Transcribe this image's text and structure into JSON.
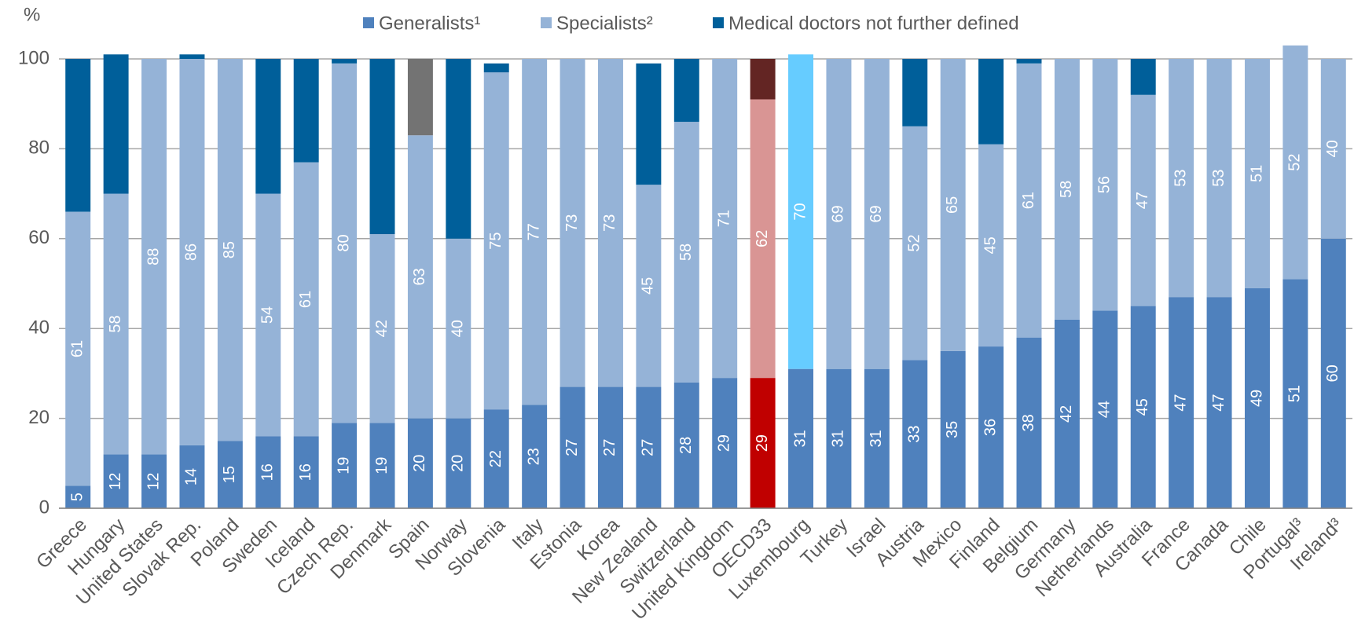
{
  "chart_data": {
    "type": "stacked_bar",
    "y_unit_label": "%",
    "categories": [
      "Greece",
      "Hungary",
      "United States",
      "Slovak Rep.",
      "Poland",
      "Sweden",
      "Iceland",
      "Czech Rep.",
      "Denmark",
      "Spain",
      "Norway",
      "Slovenia",
      "Italy",
      "Estonia",
      "Korea",
      "New Zealand",
      "Switzerland",
      "United Kingdom",
      "OECD33",
      "Luxembourg",
      "Turkey",
      "Israel",
      "Austria",
      "Mexico",
      "Finland",
      "Belgium",
      "Germany",
      "Netherlands",
      "Australia",
      "France",
      "Canada",
      "Chile",
      "Portugal³",
      "Ireland³"
    ],
    "series": [
      {
        "name": "Generalists¹",
        "color": "#4f81bd",
        "show_labels": true,
        "colors": [
          "#4f81bd",
          "#4f81bd",
          "#4f81bd",
          "#4f81bd",
          "#4f81bd",
          "#4f81bd",
          "#4f81bd",
          "#4f81bd",
          "#4f81bd",
          "#4f81bd",
          "#4f81bd",
          "#4f81bd",
          "#4f81bd",
          "#4f81bd",
          "#4f81bd",
          "#4f81bd",
          "#4f81bd",
          "#4f81bd",
          "#c00000",
          "#4f81bd",
          "#4f81bd",
          "#4f81bd",
          "#4f81bd",
          "#4f81bd",
          "#4f81bd",
          "#4f81bd",
          "#4f81bd",
          "#4f81bd",
          "#4f81bd",
          "#4f81bd",
          "#4f81bd",
          "#4f81bd",
          "#4f81bd",
          "#4f81bd"
        ],
        "values": [
          5,
          12,
          12,
          14,
          15,
          16,
          16,
          19,
          19,
          20,
          20,
          22,
          23,
          27,
          27,
          27,
          28,
          29,
          29,
          31,
          31,
          31,
          33,
          35,
          36,
          38,
          42,
          44,
          45,
          47,
          47,
          49,
          51,
          60
        ]
      },
      {
        "name": "Specialists²",
        "color": "#95b3d7",
        "show_labels": true,
        "colors": [
          "#95b3d7",
          "#95b3d7",
          "#95b3d7",
          "#95b3d7",
          "#95b3d7",
          "#95b3d7",
          "#95b3d7",
          "#95b3d7",
          "#95b3d7",
          "#95b3d7",
          "#95b3d7",
          "#95b3d7",
          "#95b3d7",
          "#95b3d7",
          "#95b3d7",
          "#95b3d7",
          "#95b3d7",
          "#95b3d7",
          "#d99594",
          "#66ccff",
          "#95b3d7",
          "#95b3d7",
          "#95b3d7",
          "#95b3d7",
          "#95b3d7",
          "#95b3d7",
          "#95b3d7",
          "#95b3d7",
          "#95b3d7",
          "#95b3d7",
          "#95b3d7",
          "#95b3d7",
          "#95b3d7",
          "#95b3d7"
        ],
        "values": [
          61,
          58,
          88,
          86,
          85,
          54,
          61,
          80,
          42,
          63,
          40,
          75,
          77,
          73,
          73,
          45,
          58,
          71,
          62,
          70,
          69,
          69,
          52,
          65,
          45,
          61,
          58,
          56,
          47,
          53,
          53,
          51,
          52,
          40
        ]
      },
      {
        "name": "Medical doctors not further defined",
        "color": "#005f9a",
        "show_labels": false,
        "colors": [
          "#005f9a",
          "#005f9a",
          "#005f9a",
          "#005f9a",
          "#005f9a",
          "#005f9a",
          "#005f9a",
          "#005f9a",
          "#005f9a",
          "#737373",
          "#005f9a",
          "#005f9a",
          "#005f9a",
          "#005f9a",
          "#005f9a",
          "#005f9a",
          "#005f9a",
          "#005f9a",
          "#632523",
          "#005f9a",
          "#005f9a",
          "#005f9a",
          "#005f9a",
          "#005f9a",
          "#005f9a",
          "#005f9a",
          "#005f9a",
          "#005f9a",
          "#005f9a",
          "#005f9a",
          "#005f9a",
          "#005f9a",
          "#005f9a",
          "#005f9a"
        ],
        "values": [
          34,
          31,
          0,
          1,
          0,
          30,
          23,
          1,
          39,
          17,
          40,
          2,
          0,
          0,
          0,
          27,
          14,
          0,
          9,
          0,
          0,
          0,
          15,
          0,
          19,
          1,
          0,
          0,
          8,
          0,
          0,
          0,
          0,
          0
        ]
      }
    ],
    "ylim": [
      0,
      100
    ],
    "yticks": [
      0,
      20,
      40,
      60,
      80,
      100
    ],
    "grid": true
  }
}
